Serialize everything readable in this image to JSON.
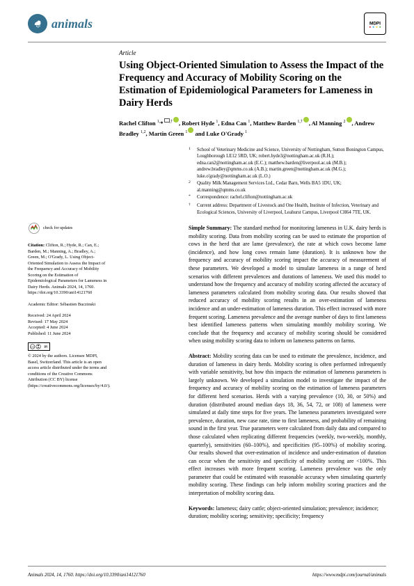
{
  "journal": {
    "name": "animals"
  },
  "publisher": "MDPI",
  "article_type": "Article",
  "title": "Using Object-Oriented Simulation to Assess the Impact of the Frequency and Accuracy of Mobility Scoring on the Estimation of Epidemiological Parameters for Lameness in Dairy Herds",
  "authors_html": "Rachel Clifton <sup>1,</sup>*<sup>,†</sup>, Robert Hyde <sup>1</sup>, Edna Can <sup>1</sup>, Matthew Barden <sup>1,†</sup>, Al Manning <sup>2</sup>, Andrew Bradley <sup>1,2</sup>, Martin Green <sup>1</sup> and Luke O'Grady <sup>1</sup>",
  "affiliations": [
    {
      "num": "1",
      "text": "School of Veterinary Medicine and Science, University of Nottingham, Sutton Bonington Campus, Loughborough LE12 5RD, UK; robert.hyde3@nottingham.ac.uk (R.H.); edna.can2@nottingham.ac.uk (E.C.); matthew.barden@liverpool.ac.uk (M.B.); andrew.bradley@qmms.co.uk (A.B.); martin.green@nottingham.ac.uk (M.G.); luke.o'grady@nottingham.ac.uk (L.O.)"
    },
    {
      "num": "2",
      "text": "Quality Milk Management Services Ltd., Cedar Barn, Wells BA5 1DU, UK; al.manning@qmms.co.uk"
    },
    {
      "num": "*",
      "text": "Correspondence: rachel.clifton@nottingham.ac.uk"
    },
    {
      "num": "†",
      "text": "Current address: Department of Livestock and One Health, Institute of Infection, Veterinary and Ecological Sciences, University of Liverpool, Leahurst Campus, Liverpool CH64 7TE, UK."
    }
  ],
  "simple_summary_label": "Simple Summary:",
  "simple_summary": "The standard method for monitoring lameness in U.K. dairy herds is mobility scoring. Data from mobility scoring can be used to estimate the proportion of cows in the herd that are lame (prevalence), the rate at which cows become lame (incidence), and how long cows remain lame (duration). It is unknown how the frequency and accuracy of mobility scoring impact the accuracy of measurement of these parameters. We developed a model to simulate lameness in a range of herd scenarios with different prevalences and durations of lameness. We used this model to understand how the frequency and accuracy of mobility scoring affected the accuracy of lameness parameters calculated from mobility scoring data. Our results showed that reduced accuracy of mobility scoring results in an over-estimation of lameness incidence and an under-estimation of lameness duration. This effect increased with more frequent scoring. Lameness prevalence and the average number of days to first lameness best identified lameness patterns when simulating monthly mobility scoring. We conclude that the frequency and accuracy of mobility scoring should be considered when using mobility scoring data to inform on lameness patterns on farms.",
  "abstract_label": "Abstract:",
  "abstract": "Mobility scoring data can be used to estimate the prevalence, incidence, and duration of lameness in dairy herds. Mobility scoring is often performed infrequently with variable sensitivity, but how this impacts the estimation of lameness parameters is largely unknown. We developed a simulation model to investigate the impact of the frequency and accuracy of mobility scoring on the estimation of lameness parameters for different herd scenarios. Herds with a varying prevalence (10, 30, or 50%) and duration (distributed around median days 18, 36, 54, 72, or 108) of lameness were simulated at daily time steps for five years. The lameness parameters investigated were prevalence, duration, new case rate, time to first lameness, and probability of remaining sound in the first year. True parameters were calculated from daily data and compared to those calculated when replicating different frequencies (weekly, two-weekly, monthly, quarterly), sensitivities (60–100%), and specificities (95–100%) of mobility scoring. Our results showed that over-estimation of incidence and under-estimation of duration can occur when the sensitivity and specificity of mobility scoring are <100%. This effect increases with more frequent scoring. Lameness prevalence was the only parameter that could be estimated with reasonable accuracy when simulating quarterly mobility scoring. These findings can help inform mobility scoring practices and the interpretation of mobility scoring data.",
  "keywords_label": "Keywords:",
  "keywords": "lameness; dairy cattle; object-oriented simulation; prevalence; incidence; duration; mobility scoring; sensitivity; specificity; frequency",
  "check_updates": "check for updates",
  "citation_label": "Citation:",
  "citation": "Clifton, R.; Hyde, R.; Can, E.; Barden, M.; Manning, A.; Bradley, A.; Green, M.; O'Grady, L. Using Object-Oriented Simulation to Assess the Impact of the Frequency and Accuracy of Mobility Scoring on the Estimation of Epidemiological Parameters for Lameness in Dairy Herds. Animals 2024, 14, 1760. https://doi.org/10.3390/ani14121760",
  "editor_label": "Academic Editor:",
  "editor": "Sébastien Buczinski",
  "received": "Received: 24 April 2024",
  "revised": "Revised: 17 May 2024",
  "accepted": "Accepted: 4 June 2024",
  "published": "Published: 11 June 2024",
  "copyright": "© 2024 by the authors. Licensee MDPI, Basel, Switzerland. This article is an open access article distributed under the terms and conditions of the Creative Commons Attribution (CC BY) license (https://creativecommons.org/licenses/by/4.0/).",
  "footer_left": "Animals 2024, 14, 1760. https://doi.org/10.3390/ani14121760",
  "footer_right": "https://www.mdpi.com/journal/animals"
}
